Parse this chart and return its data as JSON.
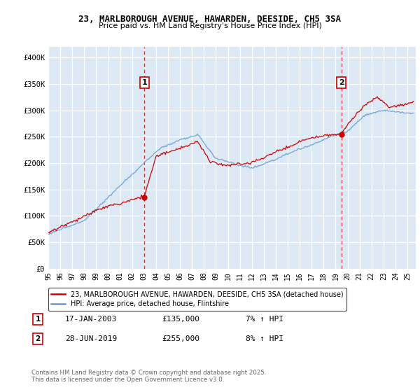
{
  "title": "23, MARLBOROUGH AVENUE, HAWARDEN, DEESIDE, CH5 3SA",
  "subtitle": "Price paid vs. HM Land Registry's House Price Index (HPI)",
  "ylabel_ticks": [
    "£0",
    "£50K",
    "£100K",
    "£150K",
    "£200K",
    "£250K",
    "£300K",
    "£350K",
    "£400K"
  ],
  "ytick_values": [
    0,
    50000,
    100000,
    150000,
    200000,
    250000,
    300000,
    350000,
    400000
  ],
  "ylim": [
    0,
    420000
  ],
  "xlim_start": 1995.0,
  "xlim_end": 2025.7,
  "sale1_date": 2003.04,
  "sale1_price": 135000,
  "sale1_label": "1",
  "sale1_hpi": "7% ↑ HPI",
  "sale1_datestr": "17-JAN-2003",
  "sale2_date": 2019.49,
  "sale2_price": 255000,
  "sale2_label": "2",
  "sale2_hpi": "8% ↑ HPI",
  "sale2_datestr": "28-JUN-2019",
  "legend1": "23, MARLBOROUGH AVENUE, HAWARDEN, DEESIDE, CH5 3SA (detached house)",
  "legend2": "HPI: Average price, detached house, Flintshire",
  "footer": "Contains HM Land Registry data © Crown copyright and database right 2025.\nThis data is licensed under the Open Government Licence v3.0.",
  "line_color_property": "#cc0000",
  "line_color_hpi": "#6699cc",
  "vline_color": "#cc3333",
  "bg_fill_color": "#dce9f5",
  "background_color": "#ffffff",
  "grid_color": "#bbccdd",
  "xtick_years": [
    1995,
    1996,
    1997,
    1998,
    1999,
    2000,
    2001,
    2002,
    2003,
    2004,
    2005,
    2006,
    2007,
    2008,
    2009,
    2010,
    2011,
    2012,
    2013,
    2014,
    2015,
    2016,
    2017,
    2018,
    2019,
    2020,
    2021,
    2022,
    2023,
    2024,
    2025
  ]
}
